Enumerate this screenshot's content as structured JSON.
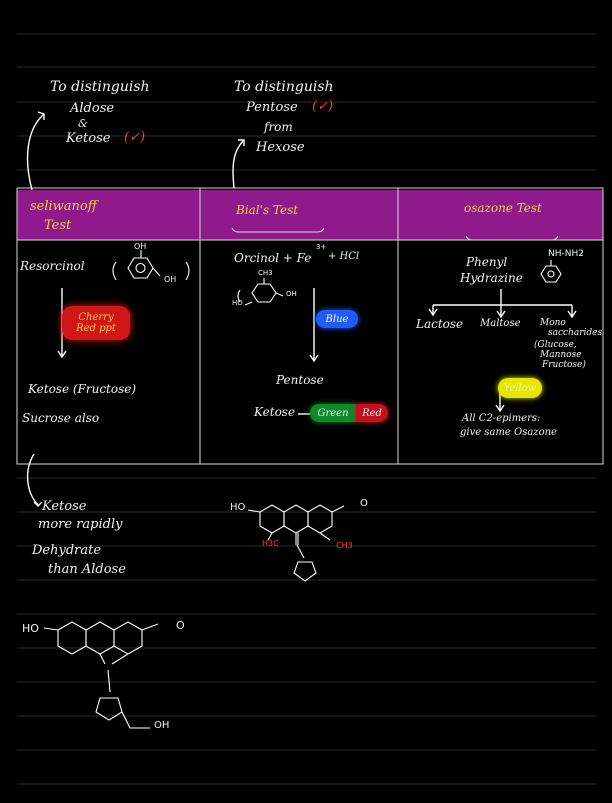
{
  "notes": {
    "aldose_head": "To distinguish",
    "aldose_line1": "Aldose",
    "aldose_amp": "&",
    "aldose_line2": "Ketose",
    "check1": "(✓)",
    "pentose_head": "To distinguish",
    "pentose_line1": "Pentose",
    "check2": "(✓)",
    "pentose_from": "from",
    "pentose_line2": "Hexose"
  },
  "table": {
    "headers": {
      "col1_a": "seliwanoff",
      "col1_b": "Test",
      "col2": "Bial's Test",
      "col3": "osazone Test"
    },
    "col1": {
      "reagent": "Resorcinol",
      "oh1": "OH",
      "oh2": "OH",
      "result_a": "Cherry",
      "result_b": "Red ppt",
      "sugar": "Ketose  (Fructose)",
      "also": "Sucrose also"
    },
    "col2": {
      "reagent": "Orcinol + Fe",
      "charge": "3+",
      "acid": "+ HCl",
      "ch3": "CH3",
      "ho": "HO",
      "oh": "OH",
      "blue": "Blue",
      "pentose": "Pentose",
      "ketose": "Ketose",
      "green_red_a": "Green",
      "green_red_b": "Red"
    },
    "col3": {
      "reagent_a": "Phenyl",
      "reagent_b": "Hydrazine",
      "nhnh2": "NH-NH2",
      "lactose": "Lactose",
      "maltose": "Maltose",
      "mono_a": "Mono",
      "mono_b": "saccharides",
      "glucose": "(Glucose,",
      "mannose": "Mannose",
      "fructose": "Fructose)",
      "yellow": "Yellow",
      "all_a": "All  C2-epimers:",
      "all_b": "give  same Osazone"
    }
  },
  "bottom": {
    "ketose_a": "Ketose",
    "ketose_b": "more rapidly",
    "ketose_c": "Dehydrate",
    "ketose_d": "than Aldose",
    "ho1": "HO",
    "o1": "O",
    "h3c": "H3C",
    "ch3": "CH3",
    "ho2": "HO",
    "o2": "O",
    "oh": "OH"
  },
  "colors": {
    "header_band": "#8e1a8c",
    "cherry_pill": "#d01616",
    "blue_pill": "#1f5bff",
    "green_pill": "#0f8a2a",
    "red_pill": "#c2101c",
    "yellow_pill": "#e6e600"
  }
}
